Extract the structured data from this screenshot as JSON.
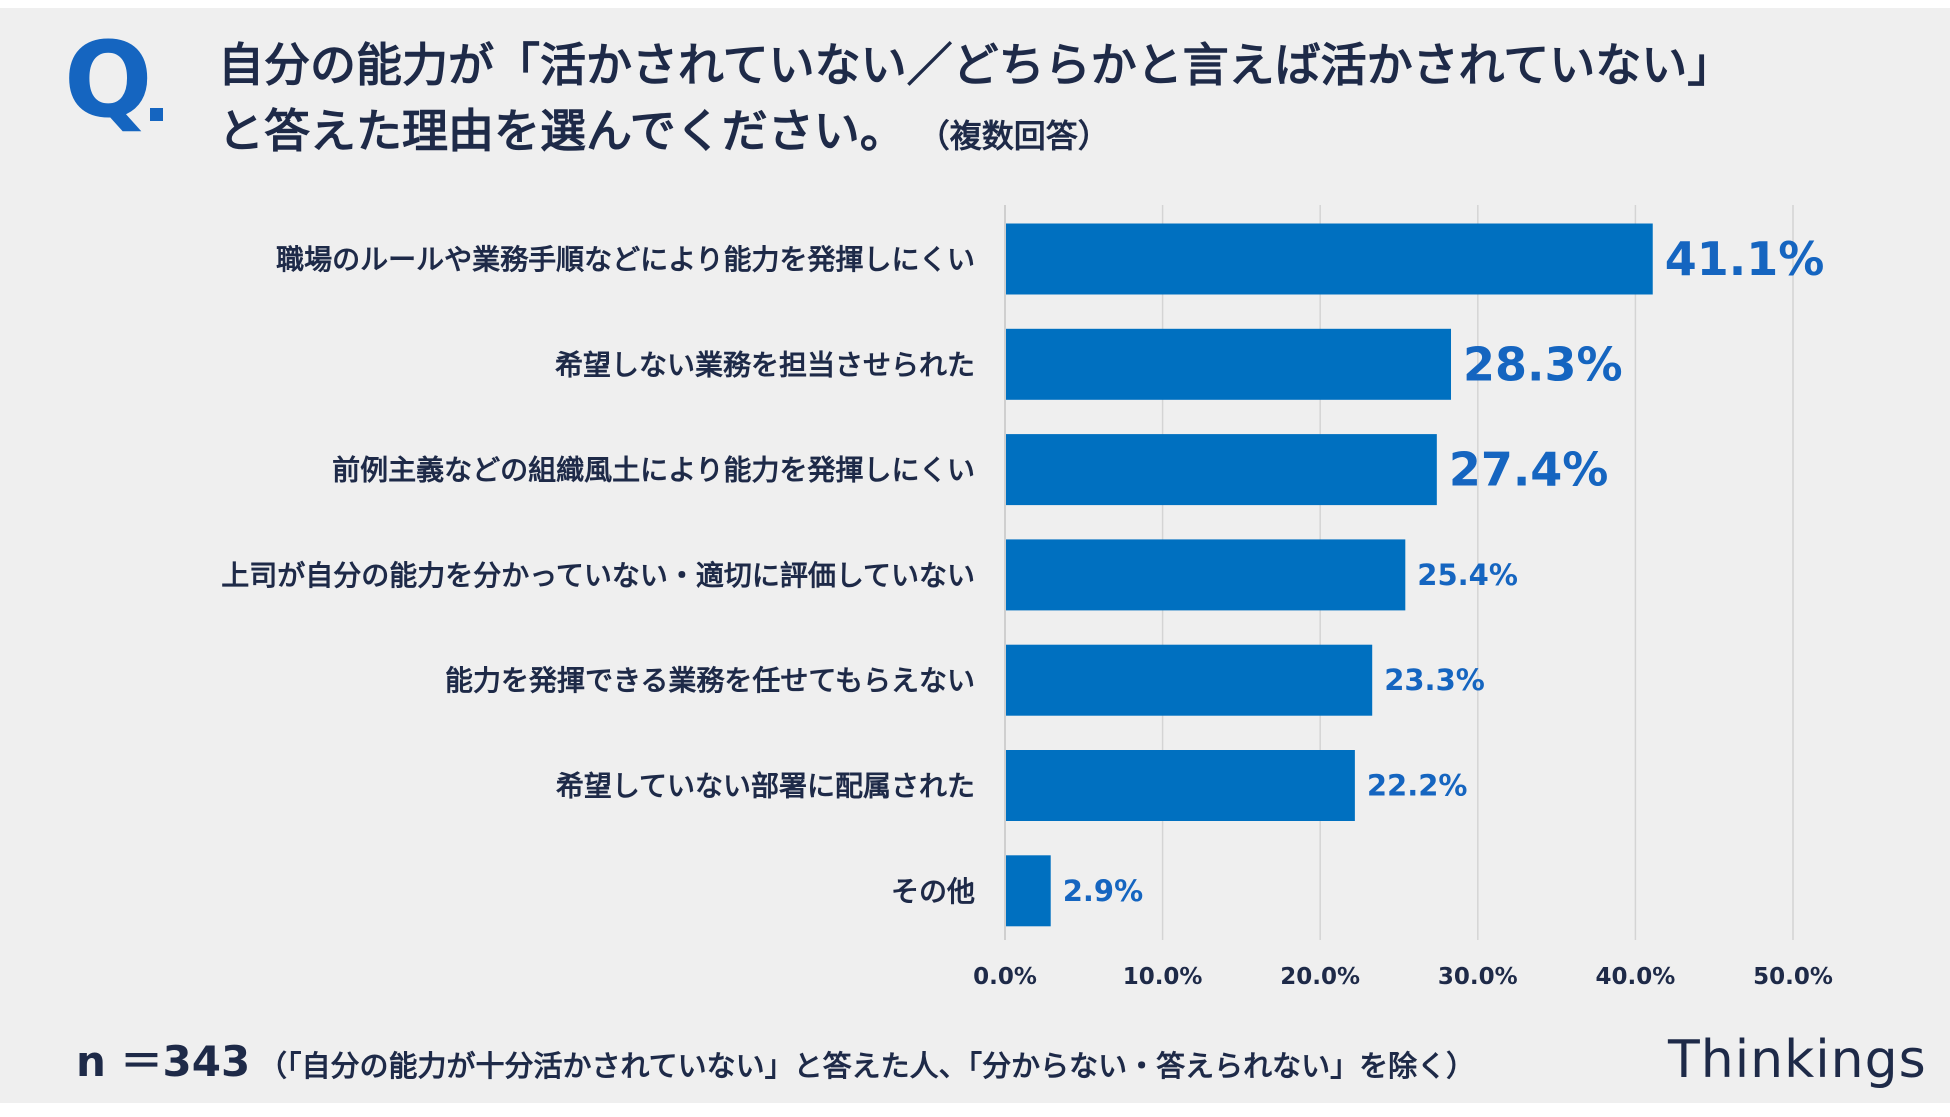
{
  "header": {
    "q_label": "Q",
    "title_line1": "自分の能力が「活かされていない／どちらかと言えば活かされていない」",
    "title_line2": "と答えた理由を選んでください。",
    "title_note": "（複数回答）"
  },
  "footer": {
    "n_label": "n ＝343",
    "note": "（「自分の能力が十分活かされていない」と答えた人、「分からない・答えられない」を除く）",
    "brand": "Thinkings"
  },
  "colors": {
    "bar": "#0070c0",
    "label_blue": "#1565c0",
    "text_dark": "#1e2a48",
    "grid": "#d4d4d4"
  },
  "chart_data": {
    "type": "bar",
    "orientation": "horizontal",
    "title": "",
    "xlabel": "",
    "ylabel": "",
    "categories": [
      "職場のルールや業務手順などにより能力を発揮しにくい",
      "希望しない業務を担当させられた",
      "前例主義などの組織風土により能力を発揮しにくい",
      "上司が自分の能力を分かっていない・適切に評価していない",
      "能力を発揮できる業務を任せてもらえない",
      "希望していない部署に配属された",
      "その他"
    ],
    "values": [
      41.1,
      28.3,
      27.4,
      25.4,
      23.3,
      22.2,
      2.9
    ],
    "value_labels": [
      "41.1%",
      "28.3%",
      "27.4%",
      "25.4%",
      "23.3%",
      "22.2%",
      "2.9%"
    ],
    "xlim": [
      0,
      50
    ],
    "xticks": [
      0,
      10,
      20,
      30,
      40,
      50
    ],
    "xtick_labels": [
      "0.0%",
      "10.0%",
      "20.0%",
      "30.0%",
      "40.0%",
      "50.0%"
    ],
    "grid": true,
    "emphasized_top_n": 3
  }
}
